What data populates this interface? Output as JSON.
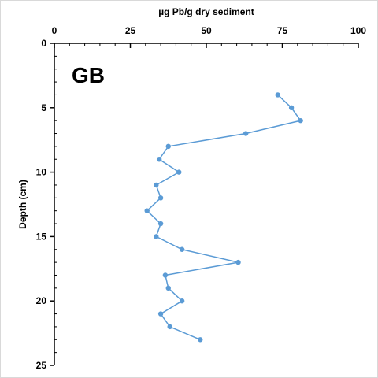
{
  "chart_data": {
    "type": "line",
    "xlabel": "µg Pb/g dry sediment",
    "ylabel": "Depth (cm)",
    "xlim": [
      0,
      100
    ],
    "ylim": [
      0,
      25
    ],
    "x_axis_position": "top",
    "y_axis_inverted": true,
    "x_ticks": [
      "0",
      "25",
      "50",
      "75",
      "100"
    ],
    "y_ticks": [
      "0",
      "5",
      "10",
      "15",
      "20",
      "25"
    ],
    "annotation": "GB",
    "grid": false,
    "series": [
      {
        "color": "#5b9bd5",
        "points": [
          {
            "x": 73.5,
            "y": 4
          },
          {
            "x": 78,
            "y": 5
          },
          {
            "x": 81,
            "y": 6
          },
          {
            "x": 63,
            "y": 7
          },
          {
            "x": 37.5,
            "y": 8
          },
          {
            "x": 34.5,
            "y": 9
          },
          {
            "x": 41,
            "y": 10
          },
          {
            "x": 33.5,
            "y": 11
          },
          {
            "x": 35,
            "y": 12
          },
          {
            "x": 30.5,
            "y": 13
          },
          {
            "x": 35,
            "y": 14
          },
          {
            "x": 33.5,
            "y": 15
          },
          {
            "x": 42,
            "y": 16
          },
          {
            "x": 60.5,
            "y": 17
          },
          {
            "x": 36.5,
            "y": 18
          },
          {
            "x": 37.5,
            "y": 19
          },
          {
            "x": 42,
            "y": 20
          },
          {
            "x": 35,
            "y": 21
          },
          {
            "x": 38,
            "y": 22
          },
          {
            "x": 48,
            "y": 23
          }
        ]
      }
    ]
  }
}
